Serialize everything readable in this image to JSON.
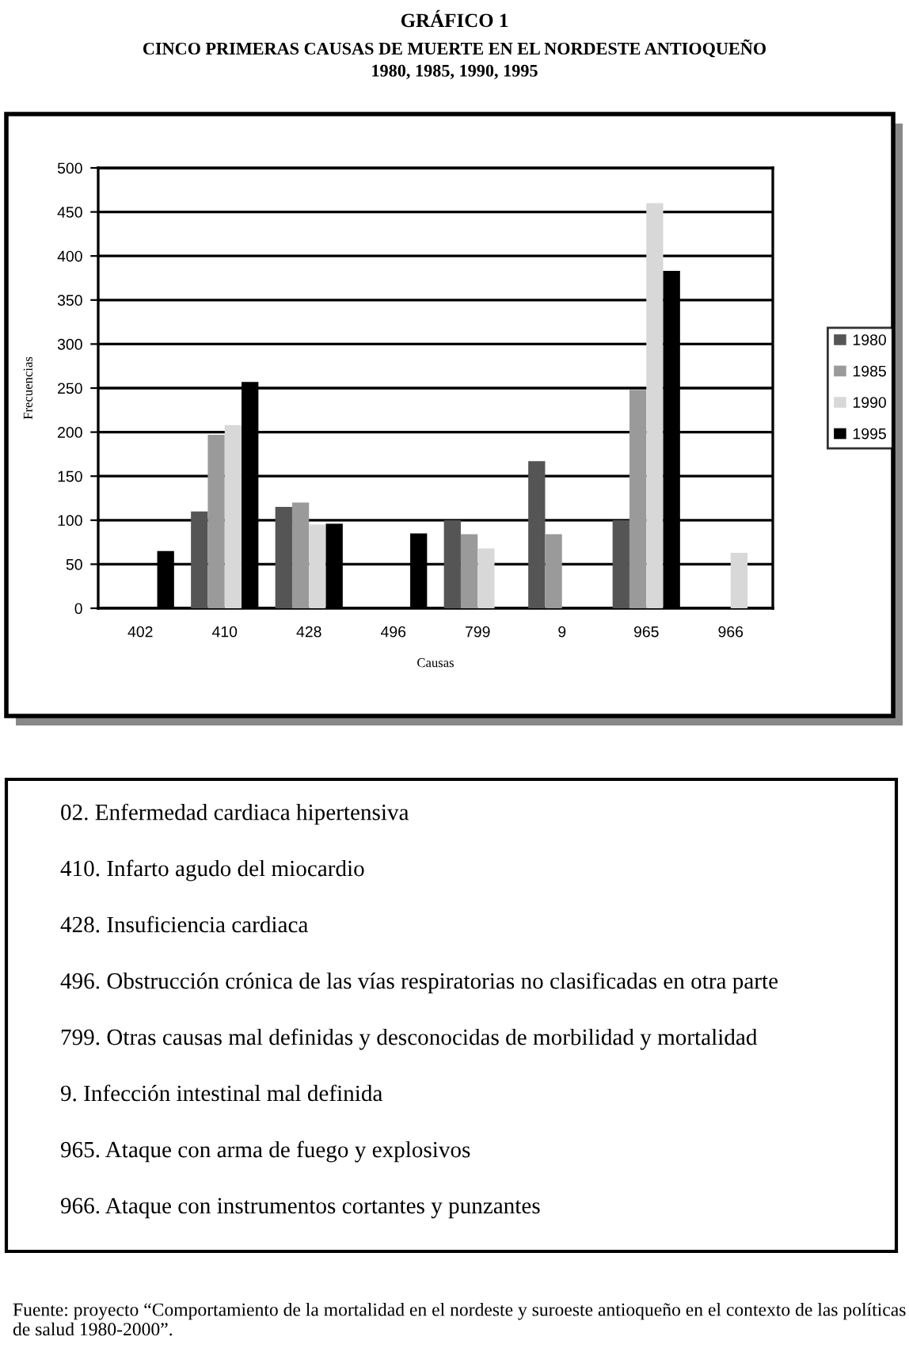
{
  "chart_data": {
    "type": "bar",
    "title": "GRÁFICO 1",
    "subtitle": "CINCO PRIMERAS CAUSAS DE MUERTE EN EL NORDESTE ANTIOQUEÑO\n1980, 1985, 1990, 1995",
    "xlabel": "Causas",
    "ylabel": "Frecuencias",
    "categories": [
      "402",
      "410",
      "428",
      "496",
      "799",
      "9",
      "965",
      "966"
    ],
    "series": [
      {
        "name": "1980",
        "color": "#555555",
        "values": [
          null,
          110,
          115,
          null,
          100,
          167,
          100,
          null
        ]
      },
      {
        "name": "1985",
        "color": "#9a9a9a",
        "values": [
          null,
          197,
          120,
          null,
          84,
          84,
          248,
          null
        ]
      },
      {
        "name": "1990",
        "color": "#d8d8d8",
        "values": [
          null,
          208,
          95,
          null,
          68,
          null,
          460,
          63
        ]
      },
      {
        "name": "1995",
        "color": "#000000",
        "values": [
          65,
          257,
          96,
          85,
          null,
          null,
          383,
          null
        ]
      }
    ],
    "ylim": [
      0,
      500
    ],
    "yticks": [
      0,
      50,
      100,
      150,
      200,
      250,
      300,
      350,
      400,
      450,
      500
    ],
    "grid": "y",
    "legend": "right",
    "annotations": [
      "02. Enfermedad cardiaca hipertensiva",
      "410. Infarto agudo del miocardio",
      "428. Insuficiencia cardiaca",
      "496. Obstrucción crónica de las vías respiratorias no clasificadas en otra parte",
      "799. Otras causas mal definidas y desconocidas de morbilidad y mortalidad",
      "9. Infección intestinal mal definida",
      "965. Ataque con arma de fuego y explosivos",
      "966. Ataque con instrumentos cortantes y punzantes",
      "Fuente: proyecto “Comportamiento de la mortalidad en el nordeste y suroeste antioqueño en el contexto de las políticas de salud 1980-2000”."
    ]
  }
}
